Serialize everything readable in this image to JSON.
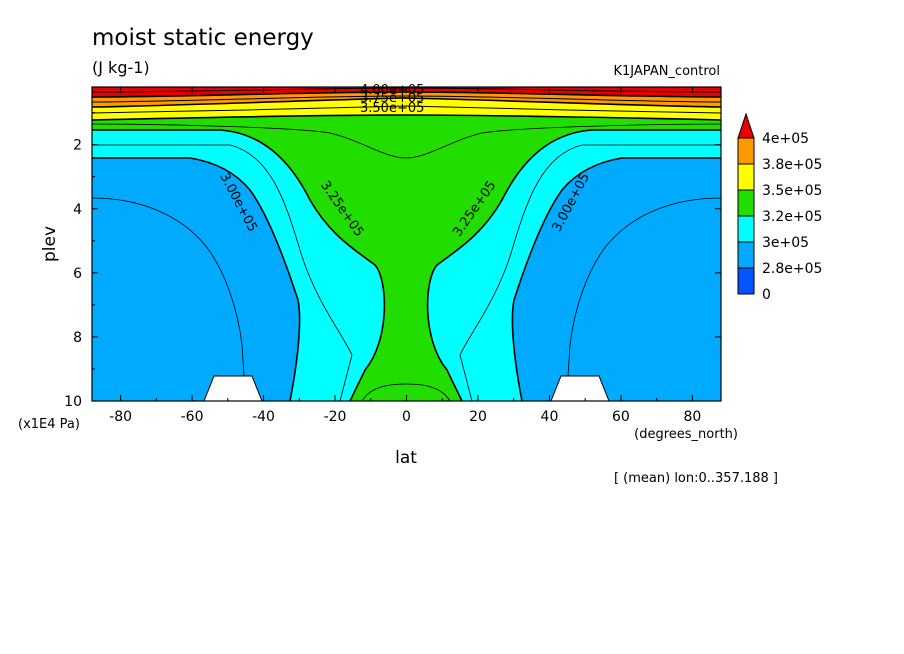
{
  "chart_data": {
    "type": "heatmap",
    "title": "moist static energy",
    "units": "(J kg-1)",
    "run_label": "K1JAPAN_control",
    "xlabel": "lat",
    "x_units": "(degrees_north)",
    "ylabel": "plev",
    "y_units": "(x1E4 Pa)",
    "footnote": "[ (mean) lon:0..357.188 ]",
    "xlim": [
      -88,
      88
    ],
    "ylim": [
      10,
      0.2
    ],
    "x_ticks": [
      -80,
      -60,
      -40,
      -20,
      0,
      20,
      40,
      60,
      80
    ],
    "x_tick_labels": [
      "-80",
      "-60",
      "-40",
      "-20",
      "0",
      "20",
      "40",
      "60",
      "80"
    ],
    "y_ticks": [
      2,
      4,
      6,
      8,
      10
    ],
    "y_tick_labels": [
      "2",
      "4",
      "6",
      "8",
      "10"
    ],
    "legend": {
      "placement": "right",
      "labels": [
        "4e+05",
        "3.8e+05",
        "3.5e+05",
        "3.2e+05",
        "3e+05",
        "2.8e+05",
        "0"
      ],
      "colors": [
        "#e60000",
        "#ff9900",
        "#ffff00",
        "#22dd00",
        "#00ffff",
        "#00aaff",
        "#0055ff"
      ]
    },
    "fill_colors": {
      "above_4e5": "#e60000",
      "3.8e5_4e5": "#ff9900",
      "3.5e5_3.8e5": "#ffff00",
      "3.2e5_3.5e5": "#22dd00",
      "3e5_3.2e5": "#00ffff",
      "2.8e5_3e5": "#00aaff",
      "below_ground": "#ffffff"
    },
    "contour_labels": [
      {
        "text": "4.00e+05",
        "lat": -4,
        "plev": 0.3
      },
      {
        "text": "3.75e+05",
        "lat": -4,
        "plev": 0.55
      },
      {
        "text": "3.50e+05",
        "lat": -4,
        "plev": 0.85
      },
      {
        "text": "3.00e+05",
        "lat": -47,
        "plev": 3.8
      },
      {
        "text": "3.25e+05",
        "lat": -18,
        "plev": 4.0
      },
      {
        "text": "3.25e+05",
        "lat": 19,
        "plev": 4.0
      },
      {
        "text": "3.00e+05",
        "lat": 46,
        "plev": 3.8
      }
    ]
  }
}
